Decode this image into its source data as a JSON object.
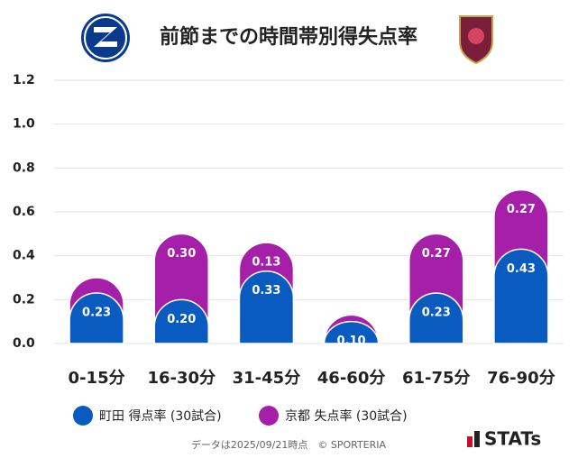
{
  "chart_data": {
    "type": "stacked_bar",
    "title": "前節までの時間帯別得失点率",
    "categories": [
      "0-15分",
      "16-30分",
      "31-45分",
      "46-60分",
      "61-75分",
      "76-90分"
    ],
    "series": [
      {
        "name": "町田 得点率 (30試合)",
        "color": "#0a5bbf",
        "values": [
          0.23,
          0.2,
          0.33,
          0.1,
          0.23,
          0.43
        ],
        "value_labels": [
          "0.23",
          "0.20",
          "0.33",
          "0.10",
          "0.23",
          "0.43"
        ]
      },
      {
        "name": "京都 失点率 (30試合)",
        "color": "#a61fa8",
        "values": [
          0.07,
          0.3,
          0.13,
          0.03,
          0.27,
          0.27
        ],
        "value_labels": [
          null,
          "0.30",
          "0.13",
          null,
          "0.27",
          "0.27"
        ]
      }
    ],
    "ylim": [
      0,
      1.2
    ],
    "yticks": [
      {
        "value": 0,
        "label": "0.0"
      },
      0.2,
      0.4,
      0.6,
      0.8,
      {
        "value": 1,
        "label": "1.0"
      },
      1.2
    ],
    "grid": true,
    "footnote": "データは2025/09/21時点　© SPORTERIA",
    "brand": "STATs"
  }
}
